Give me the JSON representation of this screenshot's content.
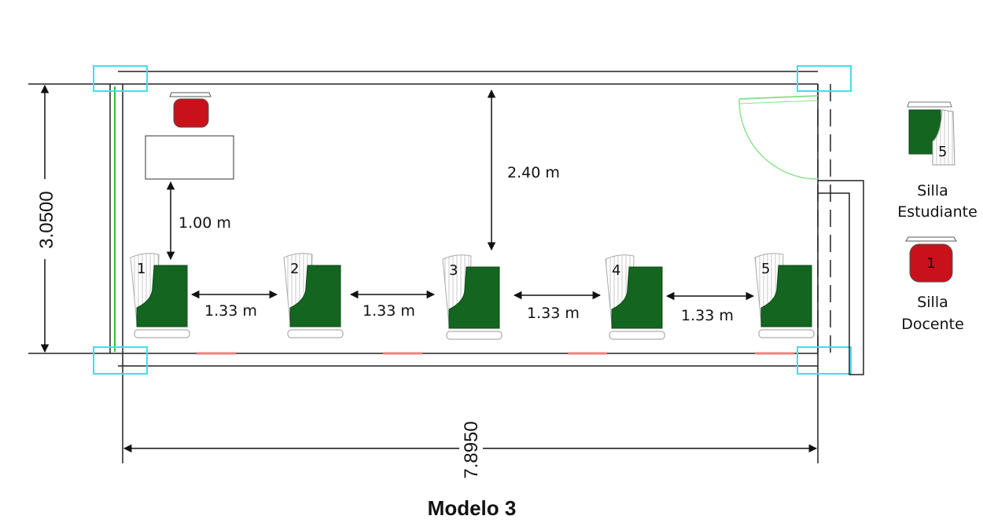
{
  "title": "Modelo 3",
  "dimensions": {
    "height_label": "3.0500",
    "width_label": "7.8950"
  },
  "spacings": {
    "desk_to_seat": "1.00 m",
    "wall_to_seat": "2.40 m",
    "between_seats": [
      "1.33 m",
      "1.33 m",
      "1.33 m",
      "1.33 m"
    ]
  },
  "student_seats": [
    "1",
    "2",
    "3",
    "4",
    "5"
  ],
  "legend": {
    "student": {
      "number": "5",
      "line1": "Silla",
      "line2": "Estudiante"
    },
    "teacher": {
      "number": "1",
      "line1": "Silla",
      "line2": "Docente"
    }
  },
  "colors": {
    "seat_green": "#14651f",
    "seat_red": "#c8111a",
    "column_cyan": "#3ee0e8",
    "door_green": "#8fe08f",
    "window_red": "#f08080"
  }
}
